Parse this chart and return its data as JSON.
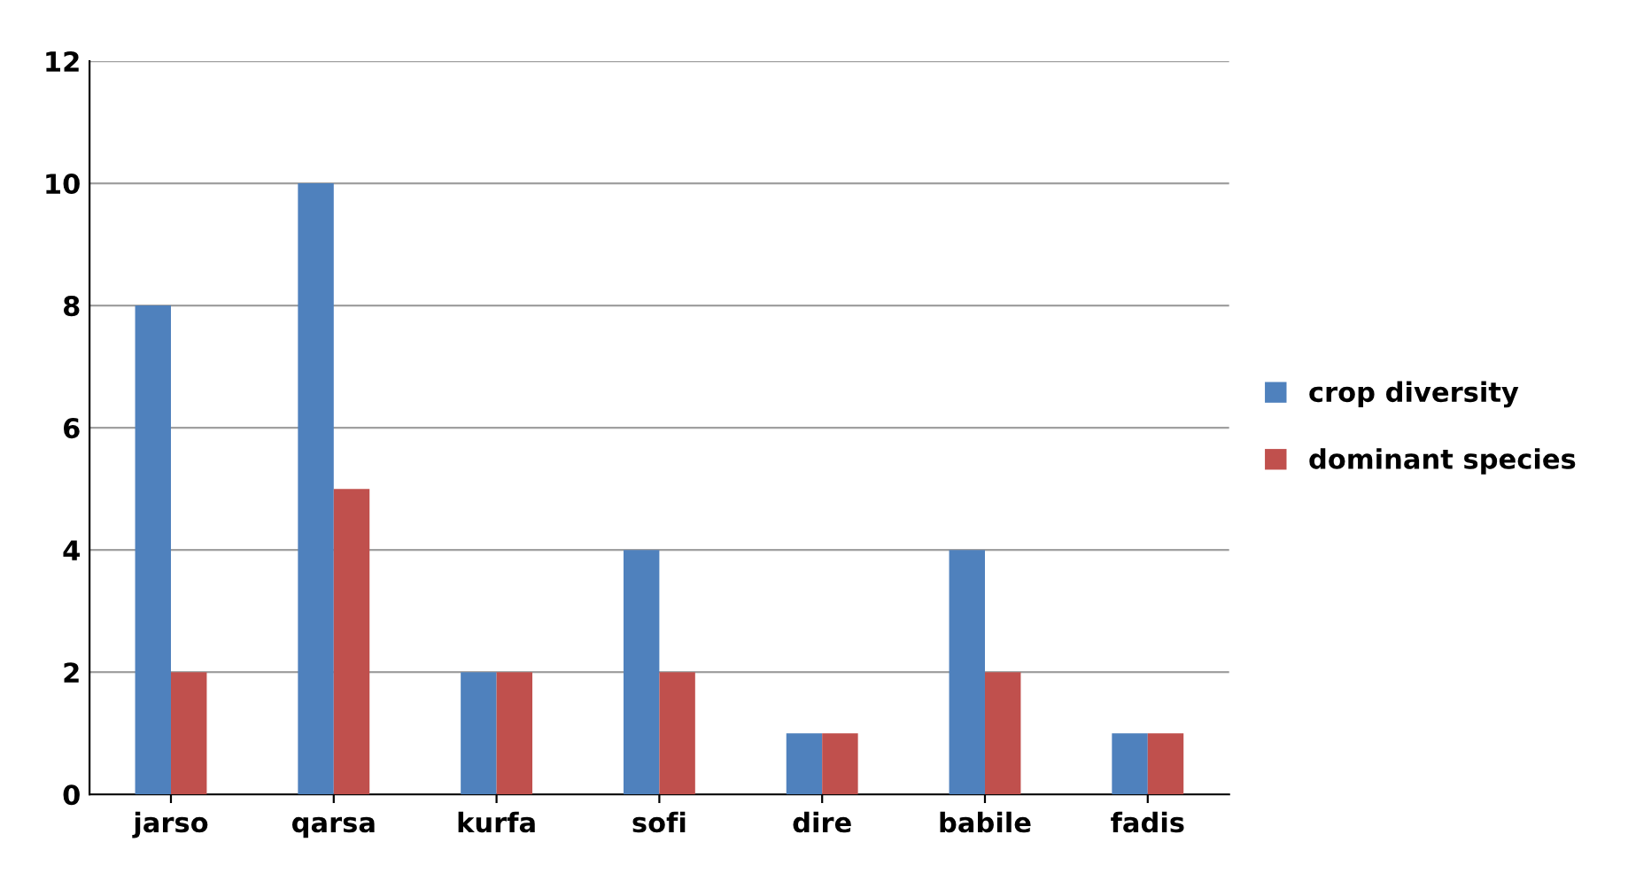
{
  "chart_data": {
    "type": "bar",
    "categories": [
      "jarso",
      "qarsa",
      "kurfa",
      "sofi",
      "dire",
      "babile",
      "fadis"
    ],
    "series": [
      {
        "name": "crop diversity",
        "color": "#4f81bd",
        "values": [
          8,
          10,
          2,
          4,
          1,
          4,
          1
        ]
      },
      {
        "name": "dominant species",
        "color": "#c0504d",
        "values": [
          2,
          5,
          2,
          2,
          1,
          2,
          1
        ]
      }
    ],
    "ylim": [
      0,
      12
    ],
    "yticks": [
      0,
      2,
      4,
      6,
      8,
      10,
      12
    ],
    "grid": "y",
    "legend": "right"
  }
}
